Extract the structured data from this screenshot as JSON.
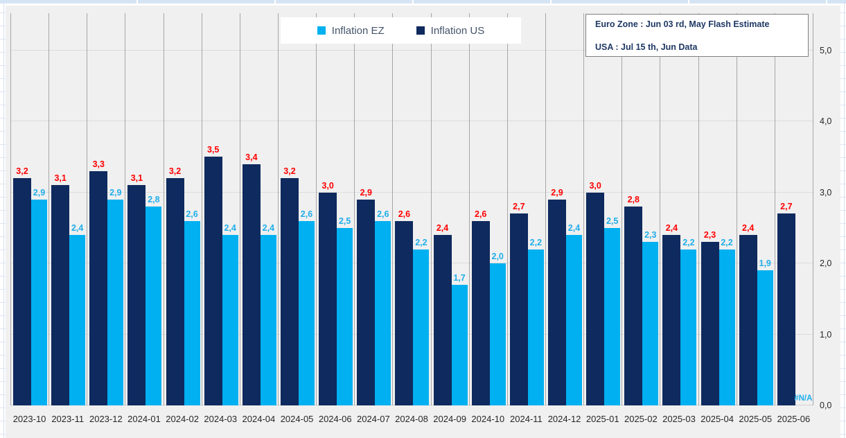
{
  "legend": {
    "items": [
      {
        "label": "Inflation EZ",
        "color": "#00b0f0"
      },
      {
        "label": "Inflation US",
        "color": "#0e2a5e"
      }
    ]
  },
  "info_box": {
    "line1": "Euro Zone : Jun 03 rd, May Flash Estimate",
    "line2": "USA : Jul 15 th, Jun Data"
  },
  "colors": {
    "us_bar": "#0e2a5e",
    "ez_bar": "#00b0f0",
    "us_value_label": "#ff0000",
    "ez_value_label": "#1faee9",
    "plot_background": "#f0f0f0",
    "vertical_gridline": "#a6a6a6",
    "horizontal_gridline": "#dbdbdb"
  },
  "chart_data": {
    "type": "bar",
    "title": "",
    "xlabel": "",
    "ylabel": "",
    "categories": [
      "2023-10",
      "2023-11",
      "2023-12",
      "2024-01",
      "2024-02",
      "2024-03",
      "2024-04",
      "2024-05",
      "2024-06",
      "2024-07",
      "2024-08",
      "2024-09",
      "2024-10",
      "2024-11",
      "2024-12",
      "2025-01",
      "2025-02",
      "2025-03",
      "2025-04",
      "2025-05",
      "2025-06"
    ],
    "series": [
      {
        "name": "Inflation EZ",
        "color": "#00b0f0",
        "label_color": "#1faee9",
        "group_slot": 1,
        "values": [
          2.9,
          2.4,
          2.9,
          2.8,
          2.6,
          2.4,
          2.4,
          2.6,
          2.5,
          2.6,
          2.2,
          1.7,
          2.0,
          2.2,
          2.4,
          2.5,
          2.3,
          2.2,
          2.2,
          1.9,
          null
        ],
        "labels": [
          "2,9",
          "2,4",
          "2,9",
          "2,8",
          "2,6",
          "2,4",
          "2,4",
          "2,6",
          "2,5",
          "2,6",
          "2,2",
          "1,7",
          "2,0",
          "2,2",
          "2,4",
          "2,5",
          "2,3",
          "2,2",
          "2,2",
          "1,9",
          "#N/A"
        ]
      },
      {
        "name": "Inflation US",
        "color": "#0e2a5e",
        "label_color": "#ff0000",
        "group_slot": 0,
        "values": [
          3.2,
          3.1,
          3.3,
          3.1,
          3.2,
          3.5,
          3.4,
          3.2,
          3.0,
          2.9,
          2.6,
          2.4,
          2.6,
          2.7,
          2.9,
          3.0,
          2.8,
          2.4,
          2.3,
          2.4,
          2.7
        ],
        "labels": [
          "3,2",
          "3,1",
          "3,3",
          "3,1",
          "3,2",
          "3,5",
          "3,4",
          "3,2",
          "3,0",
          "2,9",
          "2,6",
          "2,4",
          "2,6",
          "2,7",
          "2,9",
          "3,0",
          "2,8",
          "2,4",
          "2,3",
          "2,4",
          "2,7"
        ]
      }
    ],
    "ylim": [
      0,
      5.5
    ],
    "yticks": [
      0,
      1,
      2,
      3,
      4,
      5
    ],
    "ytick_labels": [
      "0,0",
      "1,0",
      "2,0",
      "3,0",
      "4,0",
      "5,0"
    ],
    "grid": "horizontal major + vertical category separators",
    "legend_position": "top-center",
    "missing_value_text": "#N/A"
  }
}
